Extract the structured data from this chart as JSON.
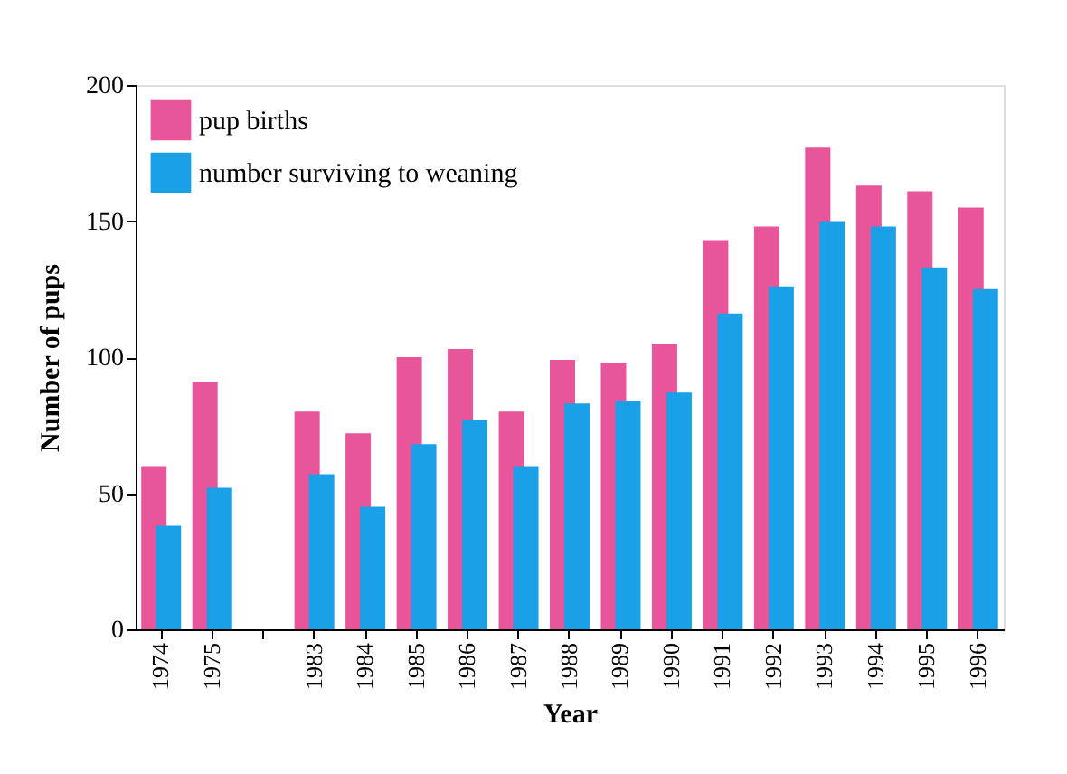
{
  "chart_data": {
    "type": "bar",
    "xlabel": "Year",
    "ylabel": "Number of pups",
    "categories": [
      "1974",
      "1975",
      null,
      "1983",
      "1984",
      "1985",
      "1986",
      "1987",
      "1988",
      "1989",
      "1990",
      "1991",
      "1992",
      "1993",
      "1994",
      "1995",
      "1996"
    ],
    "series": [
      {
        "name": "pup births",
        "color": "#e8559a",
        "values": [
          60,
          91,
          null,
          80,
          72,
          100,
          103,
          80,
          99,
          98,
          105,
          143,
          148,
          177,
          163,
          161,
          155
        ]
      },
      {
        "name": "number surviving to weaning",
        "color": "#1aa0e6",
        "values": [
          38,
          52,
          null,
          57,
          45,
          68,
          77,
          60,
          83,
          84,
          87,
          116,
          126,
          150,
          148,
          133,
          125
        ]
      }
    ],
    "ylim": [
      0,
      200
    ],
    "yticks": [
      0,
      50,
      100,
      150,
      200
    ],
    "grid": false,
    "legend": "top left"
  }
}
